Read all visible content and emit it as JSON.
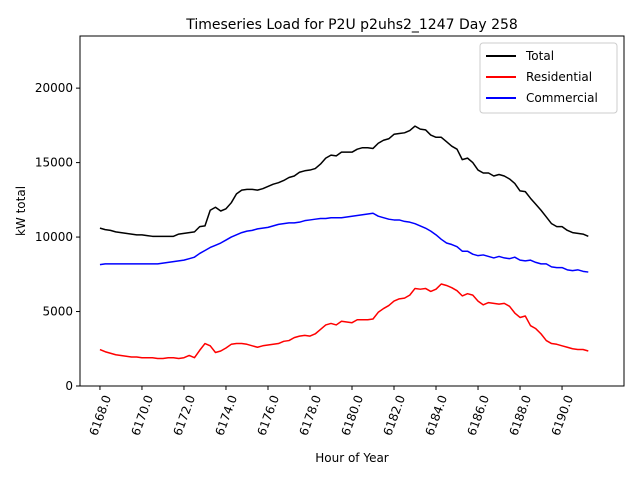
{
  "chart_data": {
    "type": "line",
    "title": "Timeseries Load for P2U p2uhs2_1247  Day 258",
    "xlabel": "Hour of Year",
    "ylabel": "kW total",
    "xlim": [
      6167.05,
      6192.95
    ],
    "ylim": [
      0,
      23500
    ],
    "xticks": [
      6168,
      6170,
      6172,
      6174,
      6176,
      6178,
      6180,
      6182,
      6184,
      6186,
      6188,
      6190
    ],
    "xtick_labels": [
      "6168.0",
      "6170.0",
      "6172.0",
      "6174.0",
      "6176.0",
      "6178.0",
      "6180.0",
      "6182.0",
      "6184.0",
      "6186.0",
      "6188.0",
      "6190.0"
    ],
    "yticks": [
      0,
      5000,
      10000,
      15000,
      20000
    ],
    "ytick_labels": [
      "0",
      "5000",
      "10000",
      "15000",
      "20000"
    ],
    "legend_position": "top-right",
    "x_start": 6168.0,
    "x_step": 0.25,
    "series": [
      {
        "name": "Total",
        "color": "#000000",
        "values": [
          10600,
          10500,
          10450,
          10350,
          10300,
          10250,
          10200,
          10150,
          10150,
          10100,
          10050,
          10050,
          10050,
          10050,
          10050,
          10200,
          10250,
          10300,
          10350,
          10700,
          10750,
          11800,
          12000,
          11750,
          11900,
          12300,
          12900,
          13150,
          13200,
          13200,
          13150,
          13250,
          13400,
          13550,
          13650,
          13800,
          14000,
          14100,
          14350,
          14450,
          14500,
          14600,
          14900,
          15300,
          15500,
          15450,
          15700,
          15700,
          15700,
          15900,
          16000,
          16000,
          15950,
          16300,
          16500,
          16600,
          16900,
          16950,
          17000,
          17150,
          17450,
          17250,
          17200,
          16850,
          16700,
          16700,
          16400,
          16100,
          15900,
          15200,
          15300,
          15000,
          14500,
          14300,
          14300,
          14100,
          14200,
          14100,
          13900,
          13600,
          13100,
          13050,
          12600,
          12200,
          11800,
          11350,
          10900,
          10700,
          10700,
          10450,
          10300,
          10250,
          10200,
          10050
        ]
      },
      {
        "name": "Residential",
        "color": "#ff0000",
        "values": [
          2450,
          2300,
          2200,
          2100,
          2050,
          2000,
          1950,
          1950,
          1900,
          1900,
          1900,
          1850,
          1850,
          1900,
          1900,
          1850,
          1900,
          2050,
          1900,
          2400,
          2850,
          2700,
          2250,
          2350,
          2550,
          2800,
          2850,
          2850,
          2800,
          2700,
          2600,
          2700,
          2750,
          2800,
          2850,
          3000,
          3050,
          3250,
          3350,
          3400,
          3350,
          3500,
          3800,
          4100,
          4200,
          4100,
          4350,
          4300,
          4250,
          4450,
          4450,
          4450,
          4500,
          4950,
          5200,
          5400,
          5700,
          5850,
          5900,
          6100,
          6550,
          6500,
          6550,
          6350,
          6500,
          6850,
          6750,
          6600,
          6400,
          6050,
          6200,
          6100,
          5700,
          5450,
          5600,
          5550,
          5500,
          5550,
          5350,
          4900,
          4600,
          4700,
          4050,
          3850,
          3500,
          3050,
          2850,
          2800,
          2700,
          2600,
          2500,
          2450,
          2450,
          2350
        ]
      },
      {
        "name": "Commercial",
        "color": "#0000ff",
        "values": [
          8150,
          8200,
          8200,
          8200,
          8200,
          8200,
          8200,
          8200,
          8200,
          8200,
          8200,
          8200,
          8250,
          8300,
          8350,
          8400,
          8450,
          8550,
          8650,
          8900,
          9100,
          9300,
          9450,
          9600,
          9800,
          10000,
          10150,
          10300,
          10400,
          10450,
          10550,
          10600,
          10650,
          10750,
          10850,
          10900,
          10950,
          10950,
          11000,
          11100,
          11150,
          11200,
          11250,
          11250,
          11300,
          11300,
          11300,
          11350,
          11400,
          11450,
          11500,
          11550,
          11600,
          11400,
          11300,
          11200,
          11150,
          11150,
          11050,
          11000,
          10900,
          10750,
          10600,
          10400,
          10150,
          9850,
          9600,
          9500,
          9350,
          9050,
          9050,
          8850,
          8750,
          8800,
          8700,
          8600,
          8700,
          8600,
          8550,
          8650,
          8450,
          8400,
          8450,
          8300,
          8200,
          8200,
          8000,
          7950,
          7950,
          7800,
          7750,
          7800,
          7700,
          7650
        ]
      }
    ]
  }
}
